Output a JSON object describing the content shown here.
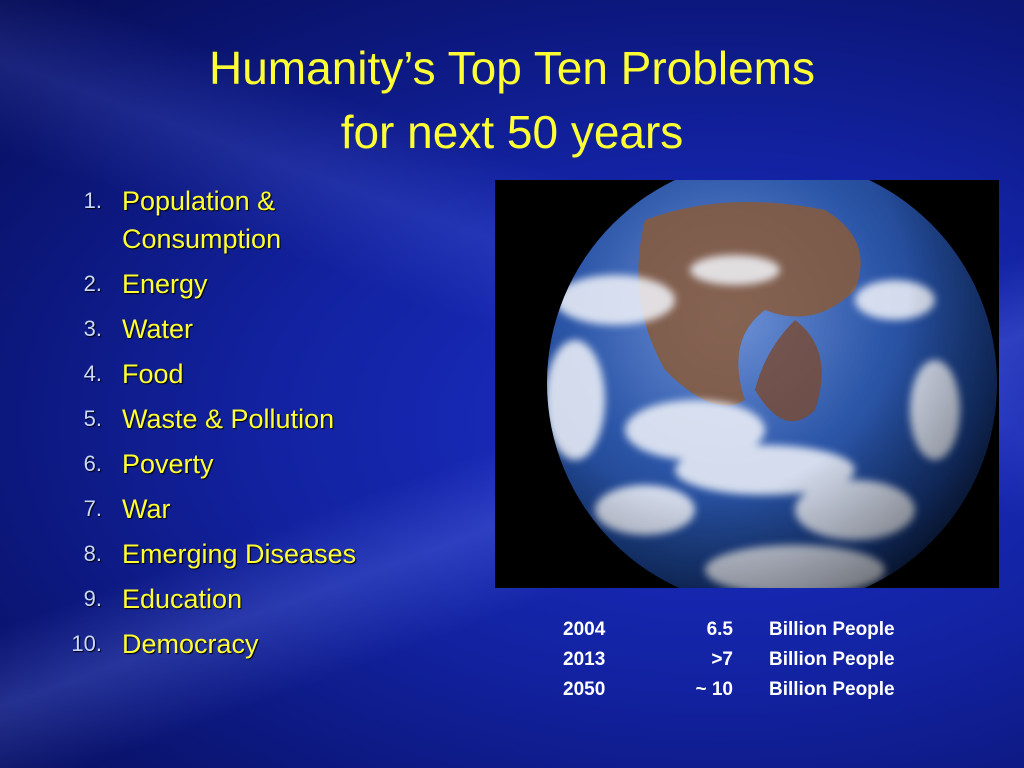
{
  "title": {
    "line1": "Humanity’s Top Ten Problems",
    "line2": "for next 50 years"
  },
  "list": [
    {
      "number": "1.",
      "text": "Population & Consumption"
    },
    {
      "number": "2.",
      "text": "Energy"
    },
    {
      "number": "3.",
      "text": "Water"
    },
    {
      "number": "4.",
      "text": "Food"
    },
    {
      "number": "5.",
      "text": "Waste & Pollution"
    },
    {
      "number": "6.",
      "text": "Poverty"
    },
    {
      "number": "7.",
      "text": "War"
    },
    {
      "number": "8.",
      "text": "Emerging Diseases"
    },
    {
      "number": "9.",
      "text": "Education"
    },
    {
      "number": "10.",
      "text": "Democracy"
    }
  ],
  "stats": [
    {
      "year": "2004",
      "value": "6.5",
      "unit": "Billion People"
    },
    {
      "year": "2013",
      "value": ">7",
      "unit": "Billion People"
    },
    {
      "year": "2050",
      "value": "~ 10",
      "unit": "Billion People"
    }
  ]
}
